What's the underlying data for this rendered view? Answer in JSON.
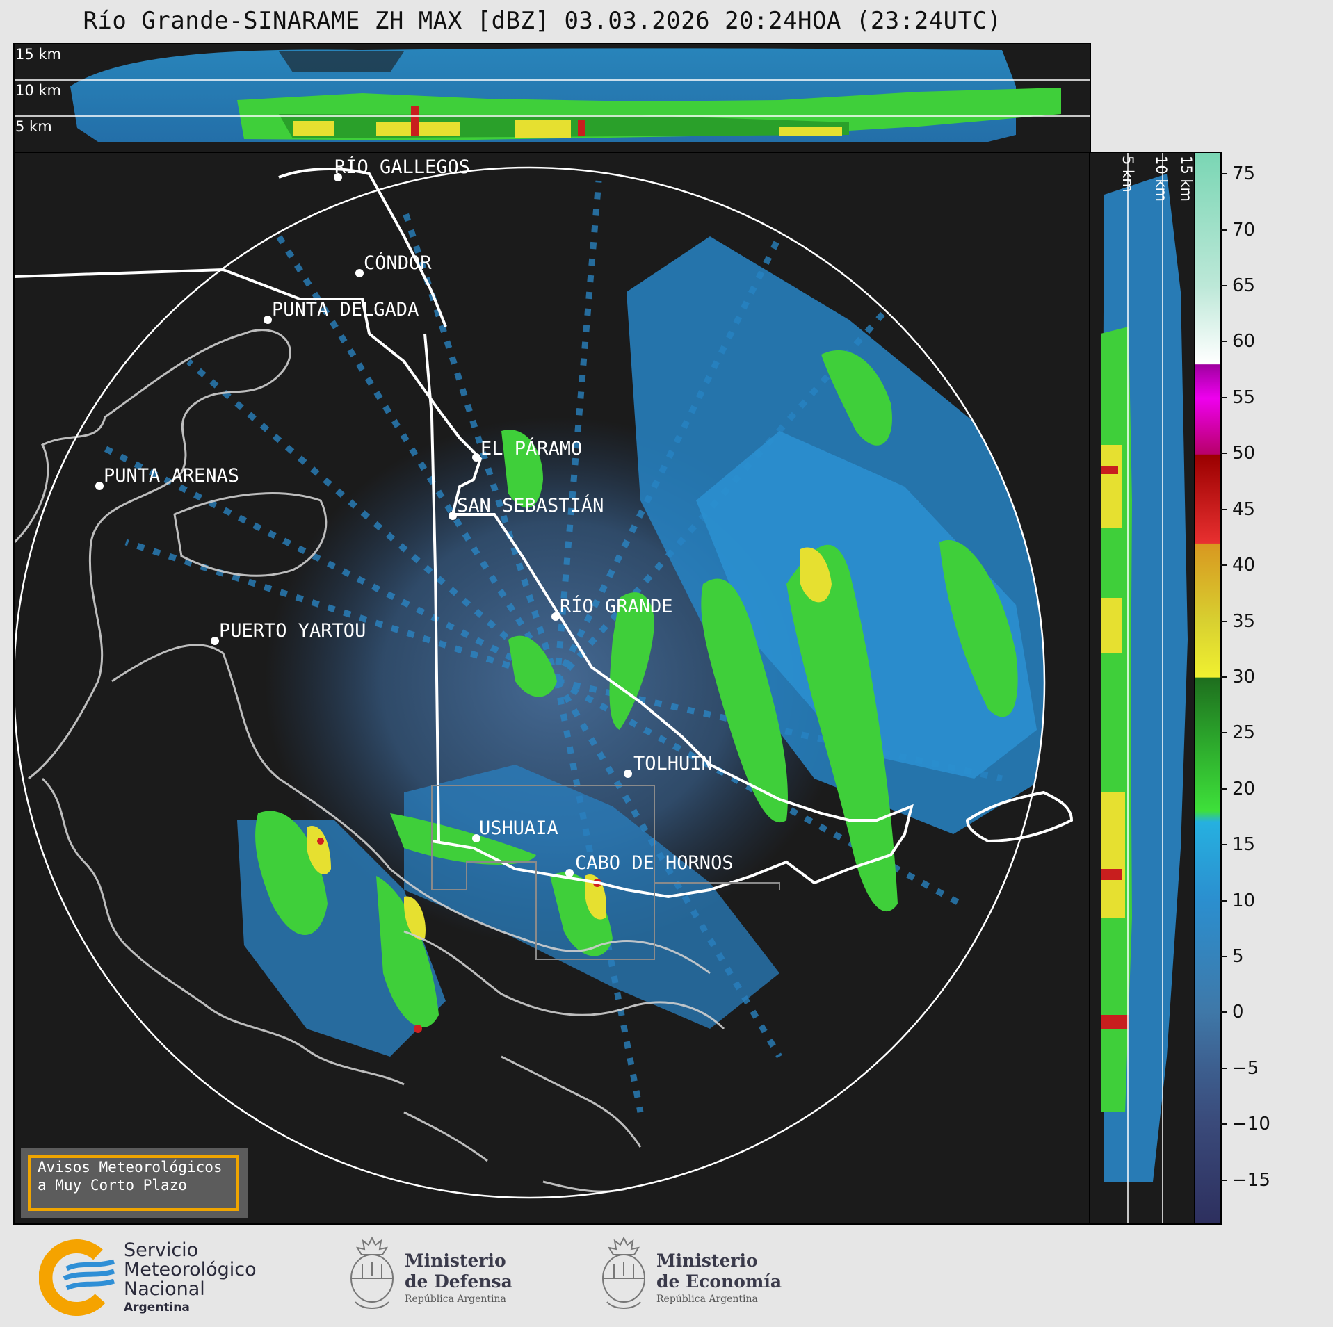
{
  "title": "Río Grande-SINARAME ZH MAX [dBZ] 03.03.2026 20:24HOA (23:24UTC)",
  "altitude_labels": [
    "15 km",
    "10 km",
    "5 km"
  ],
  "cities": [
    {
      "name": "RÍO GALLEGOS",
      "dot": [
        465,
        35
      ],
      "label": [
        460,
        5
      ]
    },
    {
      "name": "CÓNDOR",
      "dot": [
        496,
        173
      ],
      "label": [
        502,
        143
      ]
    },
    {
      "name": "PUNTA DELGADA",
      "dot": [
        364,
        240
      ],
      "label": [
        370,
        210
      ]
    },
    {
      "name": "EL PÁRAMO",
      "dot": [
        664,
        438
      ],
      "label": [
        670,
        410
      ]
    },
    {
      "name": "PUNTA ARENAS",
      "dot": [
        122,
        479
      ],
      "label": [
        128,
        449
      ]
    },
    {
      "name": "SAN SEBASTIÁN",
      "dot": [
        630,
        522
      ],
      "label": [
        636,
        492
      ]
    },
    {
      "name": "RÍO GRANDE",
      "dot": [
        778,
        667
      ],
      "label": [
        784,
        637
      ]
    },
    {
      "name": "PUERTO YARTOU",
      "dot": [
        288,
        702
      ],
      "label": [
        294,
        672
      ]
    },
    {
      "name": "TOLHUIN",
      "dot": [
        882,
        893
      ],
      "label": [
        890,
        863
      ]
    },
    {
      "name": "USHUAIA",
      "dot": [
        664,
        986
      ],
      "label": [
        668,
        956
      ]
    },
    {
      "name": "CABO DE HORNOS",
      "dot": [
        798,
        1036
      ],
      "label": [
        806,
        1006
      ]
    }
  ],
  "colorbar": {
    "unit": "dBZ",
    "ticks": [
      75,
      70,
      65,
      60,
      55,
      50,
      45,
      40,
      35,
      30,
      25,
      20,
      15,
      10,
      5,
      0,
      -5,
      -10,
      -15
    ],
    "tick_labels": [
      "75",
      "70",
      "65",
      "60",
      "55",
      "50",
      "45",
      "40",
      "35",
      "30",
      "25",
      "20",
      "15",
      "10",
      "5",
      "0",
      "−5",
      "−10",
      "−15"
    ],
    "range": [
      -19,
      77
    ],
    "stops": [
      {
        "v": -19,
        "c": "#2d2f5e"
      },
      {
        "v": -10,
        "c": "#3a4a7a"
      },
      {
        "v": -5,
        "c": "#3d5f8f"
      },
      {
        "v": 0,
        "c": "#3f78a8"
      },
      {
        "v": 10,
        "c": "#2b8fcf"
      },
      {
        "v": 17,
        "c": "#26b0e0"
      },
      {
        "v": 18,
        "c": "#3ee03a"
      },
      {
        "v": 25,
        "c": "#2aa02a"
      },
      {
        "v": 29.9,
        "c": "#1e6e1e"
      },
      {
        "v": 30,
        "c": "#f0f030"
      },
      {
        "v": 35,
        "c": "#d8d030"
      },
      {
        "v": 41.9,
        "c": "#d89820"
      },
      {
        "v": 42,
        "c": "#e83030"
      },
      {
        "v": 49.9,
        "c": "#9a0000"
      },
      {
        "v": 50,
        "c": "#b8006a"
      },
      {
        "v": 55,
        "c": "#ee00ee"
      },
      {
        "v": 58,
        "c": "#a000a0"
      },
      {
        "v": 58.1,
        "c": "#ffffff"
      },
      {
        "v": 65,
        "c": "#bde8d8"
      },
      {
        "v": 77,
        "c": "#7ad6b4"
      }
    ]
  },
  "warning": {
    "line1": "Avisos Meteorológicos",
    "line2": "a Muy Corto Plazo"
  },
  "logos": {
    "smn": {
      "l1": "Servicio",
      "l2": "Meteorológico",
      "l3": "Nacional",
      "l4": "Argentina"
    },
    "defensa": {
      "l1": "Ministerio",
      "l2": "de Defensa",
      "l3": "República Argentina"
    },
    "economia": {
      "l1": "Ministerio",
      "l2": "de Economía",
      "l3": "República Argentina"
    }
  },
  "colors": {
    "panel_bg": "#1b1b1b",
    "page_bg": "#e6e6e6",
    "range_ring": "#ffffff",
    "coast": "#cfcfcf",
    "border": "#ffffff",
    "smn_orange": "#f5a300",
    "smn_blue": "#2f8fd6"
  }
}
